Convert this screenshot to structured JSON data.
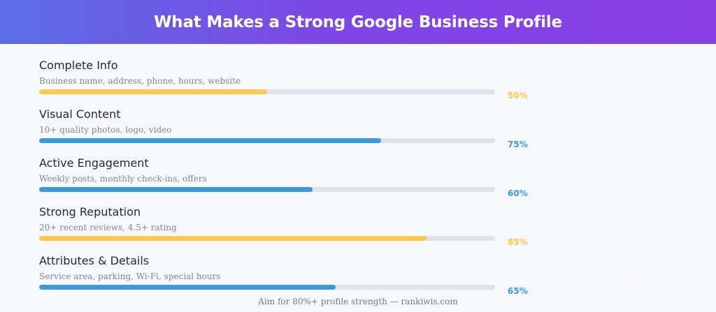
{
  "header": {
    "title": "What Makes a Strong Google Business Profile"
  },
  "chart_data": {
    "type": "bar",
    "title": "What Makes a Strong Google Business Profile",
    "orientation": "horizontal",
    "xlim": [
      0,
      100
    ],
    "ylabel": "",
    "xlabel": "",
    "grid": false,
    "categories": [
      "Complete Info",
      "Visual Content",
      "Active Engagement",
      "Strong Reputation",
      "Attributes & Details"
    ],
    "descriptions": [
      "Business name, address, phone, hours, website",
      "10+ quality photos, logo, video",
      "Weekly posts, monthly check-ins, offers",
      "20+ recent reviews, 4.5+ rating",
      "Service area, parking, Wi-Fi, special hours"
    ],
    "values": [
      50,
      75,
      60,
      85,
      65
    ],
    "value_labels": [
      "50%",
      "75%",
      "60%",
      "85%",
      "65%"
    ],
    "colors": [
      "#ffc84a",
      "#3a98df",
      "#3a98df",
      "#ffc84a",
      "#3a98df"
    ]
  },
  "footer": {
    "note": "Aim for 80%+ profile strength — rankiwis.com",
    "watermark": "rankiwis.com"
  }
}
